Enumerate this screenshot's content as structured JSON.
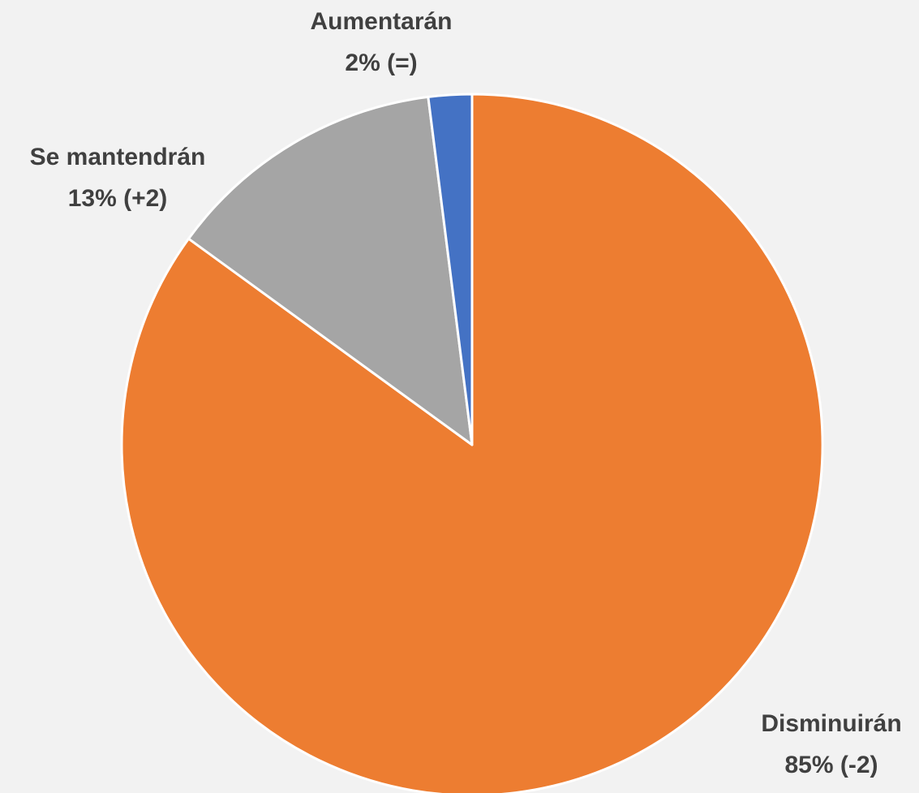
{
  "chart_data": {
    "type": "pie",
    "categories": [
      "Disminuirán",
      "Se mantendrán",
      "Aumentarán"
    ],
    "values": [
      85,
      13,
      2
    ],
    "value_labels": [
      "85% (-2)",
      "13% (+2)",
      "2% (=)"
    ],
    "colors": [
      "#ed7d31",
      "#a5a5a5",
      "#4472c4"
    ]
  }
}
